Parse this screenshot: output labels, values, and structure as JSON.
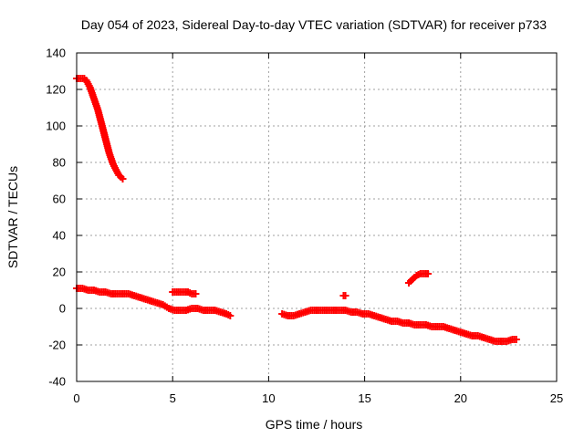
{
  "chart_data": {
    "type": "scatter",
    "title": "Day 054 of 2023, Sidereal Day-to-day VTEC variation (SDTVAR) for receiver p733",
    "xlabel": "GPS time / hours",
    "ylabel": "SDTVAR / TECUs",
    "xlim": [
      0,
      25
    ],
    "ylim": [
      -40,
      140
    ],
    "xticks": [
      0,
      5,
      10,
      15,
      20,
      25
    ],
    "yticks": [
      -40,
      -20,
      0,
      20,
      40,
      60,
      80,
      100,
      120,
      140
    ],
    "grid": true,
    "marker": "plus",
    "marker_color": "#ff0000",
    "series": [
      {
        "name": "upper decay segment",
        "x": [
          0.0,
          0.1,
          0.2,
          0.3,
          0.4,
          0.5,
          0.6,
          0.7,
          0.8,
          0.9,
          1.0,
          1.1,
          1.2,
          1.3,
          1.4,
          1.5,
          1.6,
          1.7,
          1.8,
          1.9,
          2.0,
          2.1,
          2.2,
          2.3,
          2.4
        ],
        "y": [
          126,
          126,
          126,
          126,
          126,
          125,
          123,
          121,
          118,
          115,
          112,
          109,
          105,
          101,
          97,
          93,
          89,
          85,
          82,
          79,
          77,
          75,
          73,
          72,
          71
        ]
      },
      {
        "name": "main trace 0-8 h",
        "x": [
          0.0,
          0.3,
          0.6,
          0.9,
          1.2,
          1.5,
          1.8,
          2.1,
          2.4,
          2.7,
          3.0,
          3.3,
          3.6,
          3.9,
          4.2,
          4.5,
          4.8,
          5.1,
          5.4,
          5.7,
          6.0,
          6.3,
          6.6,
          6.9,
          7.2,
          7.5,
          7.8,
          8.0
        ],
        "y": [
          11,
          11,
          10,
          10,
          9,
          9,
          8,
          8,
          8,
          8,
          7,
          6,
          5,
          4,
          3,
          2,
          0,
          -1,
          -1,
          -1,
          0,
          0,
          -1,
          -1,
          -1,
          -2,
          -3,
          -4
        ]
      },
      {
        "name": "isolated cluster near 5-6 h",
        "x": [
          5.0,
          5.2,
          5.4,
          5.6,
          5.8,
          6.0,
          6.2
        ],
        "y": [
          9,
          9,
          9,
          9,
          9,
          8,
          8
        ]
      },
      {
        "name": "main trace 10.7-23 h",
        "x": [
          10.7,
          11.0,
          11.3,
          11.6,
          11.9,
          12.2,
          12.5,
          12.8,
          13.1,
          13.4,
          13.7,
          14.0,
          14.3,
          14.6,
          14.9,
          15.2,
          15.5,
          15.8,
          16.1,
          16.4,
          16.7,
          17.0,
          17.3,
          17.6,
          17.9,
          18.2,
          18.5,
          18.8,
          19.1,
          19.4,
          19.7,
          20.0,
          20.3,
          20.6,
          20.9,
          21.2,
          21.5,
          21.8,
          22.1,
          22.4,
          22.7,
          22.9
        ],
        "y": [
          -3,
          -4,
          -4,
          -3,
          -2,
          -1,
          -1,
          -1,
          -1,
          -1,
          -1,
          -1,
          -2,
          -2,
          -3,
          -3,
          -4,
          -5,
          -6,
          -7,
          -7,
          -8,
          -8,
          -9,
          -9,
          -9,
          -10,
          -10,
          -10,
          -11,
          -12,
          -13,
          -14,
          -15,
          -15,
          -16,
          -17,
          -18,
          -18,
          -18,
          -17,
          -17
        ]
      },
      {
        "name": "isolated points near 14 h",
        "x": [
          13.9,
          14.0
        ],
        "y": [
          7,
          7
        ]
      },
      {
        "name": "rising segment 17.3-18.3 h",
        "x": [
          17.3,
          17.5,
          17.7,
          17.9,
          18.1,
          18.3
        ],
        "y": [
          14,
          16,
          18,
          19,
          19,
          19
        ]
      }
    ]
  }
}
